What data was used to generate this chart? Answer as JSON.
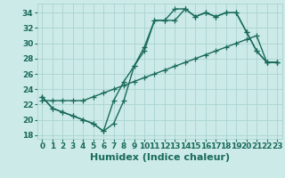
{
  "background_color": "#cceae7",
  "grid_color": "#aad4d0",
  "line_color": "#1a6b5a",
  "marker": "+",
  "markersize": 4,
  "linewidth": 1.0,
  "xlabel": "Humidex (Indice chaleur)",
  "xlabel_fontsize": 8,
  "tick_fontsize": 6.5,
  "yticks": [
    18,
    20,
    22,
    24,
    26,
    28,
    30,
    32,
    34
  ],
  "xticks": [
    0,
    1,
    2,
    3,
    4,
    5,
    6,
    7,
    8,
    9,
    10,
    11,
    12,
    13,
    14,
    15,
    16,
    17,
    18,
    19,
    20,
    21,
    22,
    23
  ],
  "xlim": [
    -0.5,
    23.5
  ],
  "ylim": [
    17.5,
    35.2
  ],
  "series1_x": [
    0,
    1,
    2,
    3,
    4,
    5,
    6,
    7,
    8,
    9,
    10,
    11,
    12,
    13,
    14,
    15,
    16,
    17,
    18,
    19,
    20,
    21,
    22,
    23
  ],
  "series1_y": [
    23.0,
    21.5,
    21.0,
    20.5,
    20.0,
    19.5,
    18.5,
    19.5,
    22.5,
    27.0,
    29.0,
    33.0,
    33.0,
    34.5,
    34.5,
    33.5,
    34.0,
    33.5,
    34.0,
    34.0,
    31.5,
    29.0,
    27.5,
    27.5
  ],
  "series2_x": [
    0,
    1,
    2,
    3,
    4,
    5,
    6,
    7,
    8,
    9,
    10,
    11,
    12,
    13,
    14,
    15,
    16,
    17,
    18,
    19,
    20,
    21,
    22,
    23
  ],
  "series2_y": [
    23.0,
    21.5,
    21.0,
    20.5,
    20.0,
    19.5,
    18.5,
    22.5,
    25.0,
    27.0,
    29.5,
    33.0,
    33.0,
    33.0,
    34.5,
    33.5,
    34.0,
    33.5,
    34.0,
    34.0,
    31.5,
    29.0,
    27.5,
    27.5
  ],
  "series3_x": [
    0,
    1,
    2,
    3,
    4,
    5,
    6,
    7,
    8,
    9,
    10,
    11,
    12,
    13,
    14,
    15,
    16,
    17,
    18,
    19,
    20,
    21,
    22,
    23
  ],
  "series3_y": [
    22.5,
    22.5,
    22.5,
    22.5,
    22.5,
    23.0,
    23.5,
    24.0,
    24.5,
    25.0,
    25.5,
    26.0,
    26.5,
    27.0,
    27.5,
    28.0,
    28.5,
    29.0,
    29.5,
    30.0,
    30.5,
    31.0,
    27.5,
    27.5
  ]
}
